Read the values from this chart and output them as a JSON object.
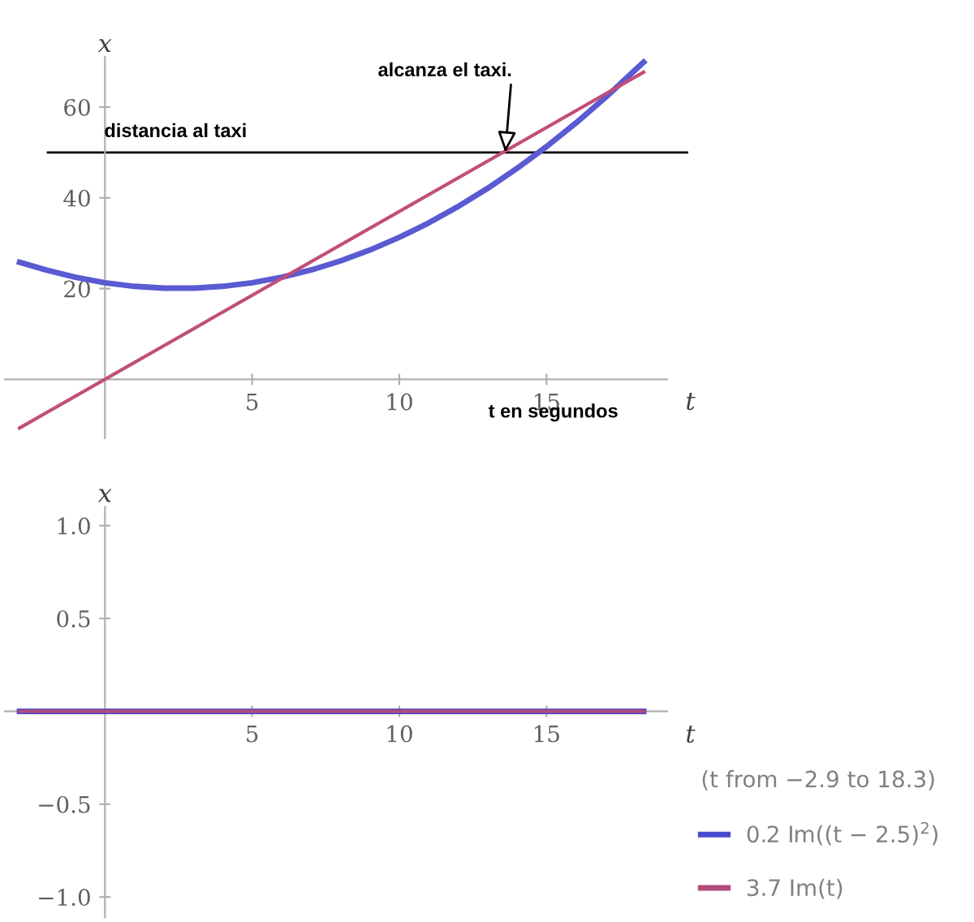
{
  "chart_data": [
    {
      "type": "line",
      "xlabel": "t",
      "ylabel": "x",
      "xlim": [
        -3.4,
        19.1
      ],
      "ylim": [
        -12.9,
        71
      ],
      "xticks": [
        5,
        10,
        15
      ],
      "yticks": [
        20,
        40,
        60
      ],
      "grid": false,
      "series": [
        {
          "color": "#5a5ad2",
          "x": [
            -2.9,
            -2,
            -1,
            0,
            1,
            2,
            3,
            4,
            5,
            6,
            7,
            8,
            9,
            10,
            11,
            12,
            13,
            14,
            15,
            16,
            17,
            18,
            18.3
          ],
          "values": [
            25.8,
            24.1,
            22.5,
            21.3,
            20.5,
            20.1,
            20.1,
            20.5,
            21.3,
            22.5,
            24.1,
            26.1,
            28.5,
            31.3,
            34.5,
            38.1,
            42.1,
            46.5,
            51.3,
            56.5,
            62.1,
            68.1,
            69.9
          ]
        },
        {
          "color": "#c24e78",
          "x": [
            -2.9,
            18.3
          ],
          "values": [
            -10.7,
            67.7
          ]
        }
      ],
      "ref_lines": [
        {
          "axis": "y",
          "value": 50,
          "label": "distancia al taxi",
          "color": "#000000"
        }
      ],
      "annotations": [
        {
          "text": "alcanza el taxi.",
          "x": 13.6,
          "y": 50
        },
        "t en segundos"
      ]
    },
    {
      "type": "line",
      "xlabel": "t",
      "ylabel": "x",
      "xlim": [
        -3.4,
        19.1
      ],
      "ylim": [
        -1.11,
        1.1
      ],
      "xticks": [
        5,
        10,
        15
      ],
      "yticks": [
        {
          "value": -1.0,
          "label": "−1.0"
        },
        {
          "value": -0.5,
          "label": "−0.5"
        },
        0.5,
        {
          "value": 1.0,
          "label": "1.0"
        }
      ],
      "grid": false,
      "legend": "right",
      "legend_title": "(t from −2.9 to 18.3)",
      "series": [
        {
          "name": "0.2 Im((t − 2.5)$^{2}$)",
          "color": "#4a4ad0",
          "x": [
            -2.9,
            18.3
          ],
          "values": [
            0,
            0
          ]
        },
        {
          "name": "3.7 Im(t)",
          "color": "#b04c7c",
          "x": [
            -2.9,
            18.3
          ],
          "values": [
            0,
            0
          ]
        }
      ]
    }
  ]
}
